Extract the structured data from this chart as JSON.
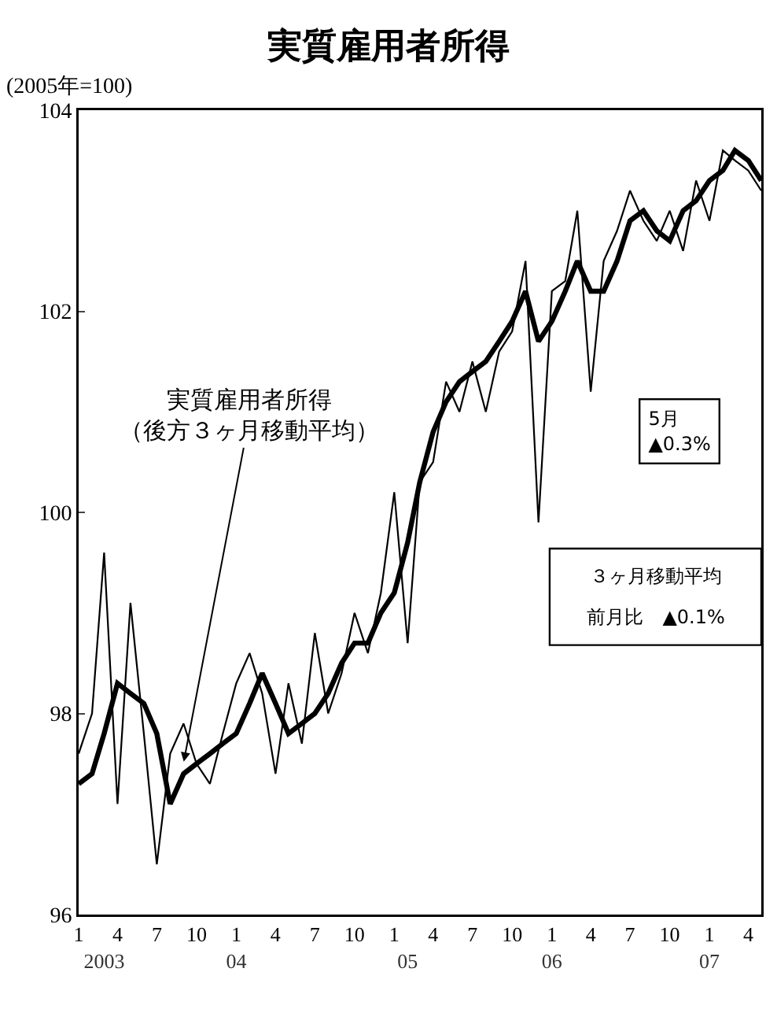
{
  "chart_data": {
    "type": "line",
    "title": "実質雇用者所得",
    "ylabel": "(2005年=100)",
    "x": [
      "2003-01",
      "2003-02",
      "2003-03",
      "2003-04",
      "2003-05",
      "2003-06",
      "2003-07",
      "2003-08",
      "2003-09",
      "2003-10",
      "2003-11",
      "2003-12",
      "2004-01",
      "2004-02",
      "2004-03",
      "2004-04",
      "2004-05",
      "2004-06",
      "2004-07",
      "2004-08",
      "2004-09",
      "2004-10",
      "2004-11",
      "2004-12",
      "2005-01",
      "2005-02",
      "2005-03",
      "2005-04",
      "2005-05",
      "2005-06",
      "2005-07",
      "2005-08",
      "2005-09",
      "2005-10",
      "2005-11",
      "2005-12",
      "2006-01",
      "2006-02",
      "2006-03",
      "2006-04",
      "2006-05",
      "2006-06",
      "2006-07",
      "2006-08",
      "2006-09",
      "2006-10",
      "2006-11",
      "2006-12",
      "2007-01",
      "2007-02",
      "2007-03",
      "2007-04",
      "2007-05"
    ],
    "series": [
      {
        "color": "#000000",
        "values": [
          97.6,
          98.0,
          99.6,
          97.1,
          99.1,
          97.8,
          96.5,
          97.6,
          97.9,
          97.5,
          97.3,
          97.8,
          98.3,
          98.6,
          98.2,
          97.4,
          98.3,
          97.7,
          98.8,
          98.0,
          98.4,
          99.0,
          98.6,
          99.2,
          100.2,
          98.7,
          100.3,
          100.5,
          101.3,
          101.0,
          101.5,
          101.0,
          101.6,
          101.8,
          102.5,
          99.9,
          102.2,
          102.3,
          103.0,
          101.2,
          102.5,
          102.8,
          103.2,
          102.9,
          102.7,
          103.0,
          102.6,
          103.3,
          102.9,
          103.6,
          103.5,
          103.4,
          103.2
        ]
      },
      {
        "color": "#000000",
        "values": [
          97.3,
          97.4,
          97.8,
          98.3,
          98.2,
          98.1,
          97.8,
          97.1,
          97.4,
          97.5,
          97.6,
          97.7,
          97.8,
          98.1,
          98.4,
          98.1,
          97.8,
          97.9,
          98.0,
          98.2,
          98.5,
          98.7,
          98.7,
          99.0,
          99.2,
          99.7,
          100.3,
          100.8,
          101.1,
          101.3,
          101.4,
          101.5,
          101.7,
          101.9,
          102.2,
          101.7,
          101.9,
          102.2,
          102.5,
          102.2,
          102.2,
          102.5,
          102.9,
          103.0,
          102.8,
          102.7,
          103.0,
          103.1,
          103.3,
          103.4,
          103.6,
          103.5,
          103.3
        ]
      }
    ],
    "xlim": [
      "2003-01",
      "2007-05"
    ],
    "xticks": [
      {
        "value": "2003-01",
        "label": "1"
      },
      {
        "value": "2003-04",
        "label": "4"
      },
      {
        "value": "2003-07",
        "label": "7"
      },
      {
        "value": "2003-10",
        "label": "10"
      },
      {
        "value": "2004-01",
        "label": "1"
      },
      {
        "value": "2004-04",
        "label": "4"
      },
      {
        "value": "2004-07",
        "label": "7"
      },
      {
        "value": "2004-10",
        "label": "10"
      },
      {
        "value": "2005-01",
        "label": "1"
      },
      {
        "value": "2005-04",
        "label": "4"
      },
      {
        "value": "2005-07",
        "label": "7"
      },
      {
        "value": "2005-10",
        "label": "10"
      },
      {
        "value": "2006-01",
        "label": "1"
      },
      {
        "value": "2006-04",
        "label": "4"
      },
      {
        "value": "2006-07",
        "label": "7"
      },
      {
        "value": "2006-10",
        "label": "10"
      },
      {
        "value": "2007-01",
        "label": "1"
      },
      {
        "value": "2007-04",
        "label": "4"
      }
    ],
    "x2lim": [
      "2003-01",
      "2007-05"
    ],
    "x2ticks": [
      {
        "value": "2003-03",
        "label": "2003"
      },
      {
        "value": "2004-01",
        "label": "04"
      },
      {
        "value": "2005-02",
        "label": "05"
      },
      {
        "value": "2006-01",
        "label": "06"
      },
      {
        "value": "2007-01",
        "label": "07"
      }
    ],
    "ylim": [
      96,
      104
    ],
    "yticks": [
      96,
      98,
      100,
      102,
      104
    ],
    "annotations": [
      "実質雇用者所得（後方３ヶ月移動平均）",
      "5月\n▲0.3%",
      "３ヶ月移動平均",
      "前月比　▲0.1%"
    ]
  }
}
